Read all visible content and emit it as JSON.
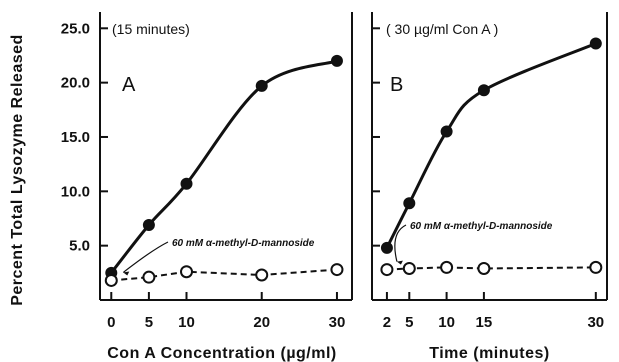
{
  "y_axis_label": "Percent  Total  Lysozyme  Released",
  "annotation_text": "60 mM α-methyl-D-mannoside",
  "chart_data": [
    {
      "type": "line",
      "panel_letter": "A",
      "condition_label": "(15 minutes)",
      "xlabel": "Con A  Concentration  (µg/ml)",
      "ylabel": "Percent  Total  Lysozyme  Released",
      "x_ticks": [
        0,
        5,
        10,
        20,
        30
      ],
      "y_ticks": [
        "5.0",
        "10.0",
        "15.0",
        "20.0",
        "25.0"
      ],
      "xlim": [
        -1.5,
        32
      ],
      "ylim": [
        0,
        26.5
      ],
      "series": [
        {
          "marker": "filled",
          "line": "solid",
          "x": [
            0,
            5,
            10,
            20,
            30
          ],
          "y": [
            2.5,
            6.9,
            10.7,
            19.7,
            22.0
          ]
        },
        {
          "name": "60 mM α-methyl-D-mannoside",
          "marker": "open",
          "line": "dashed",
          "x": [
            0,
            5,
            10,
            20,
            30
          ],
          "y": [
            1.8,
            2.1,
            2.6,
            2.3,
            2.8
          ]
        }
      ]
    },
    {
      "type": "line",
      "panel_letter": "B",
      "condition_label": "( 30 µg/ml  Con A )",
      "xlabel": "Time  (minutes)",
      "x_ticks": [
        2,
        5,
        10,
        15,
        30
      ],
      "y_ticks": [
        "5.0",
        "10.0",
        "15.0",
        "20.0",
        "25.0"
      ],
      "xlim": [
        0,
        31.5
      ],
      "ylim": [
        0,
        26.5
      ],
      "series": [
        {
          "marker": "filled",
          "line": "solid",
          "x": [
            2,
            5,
            10,
            15,
            30
          ],
          "y": [
            4.8,
            8.9,
            15.5,
            19.3,
            23.6
          ]
        },
        {
          "name": "60 mM α-methyl-D-mannoside",
          "marker": "open",
          "line": "dashed",
          "x": [
            2,
            5,
            10,
            15,
            30
          ],
          "y": [
            2.8,
            2.9,
            3.0,
            2.9,
            3.0
          ]
        }
      ]
    }
  ]
}
